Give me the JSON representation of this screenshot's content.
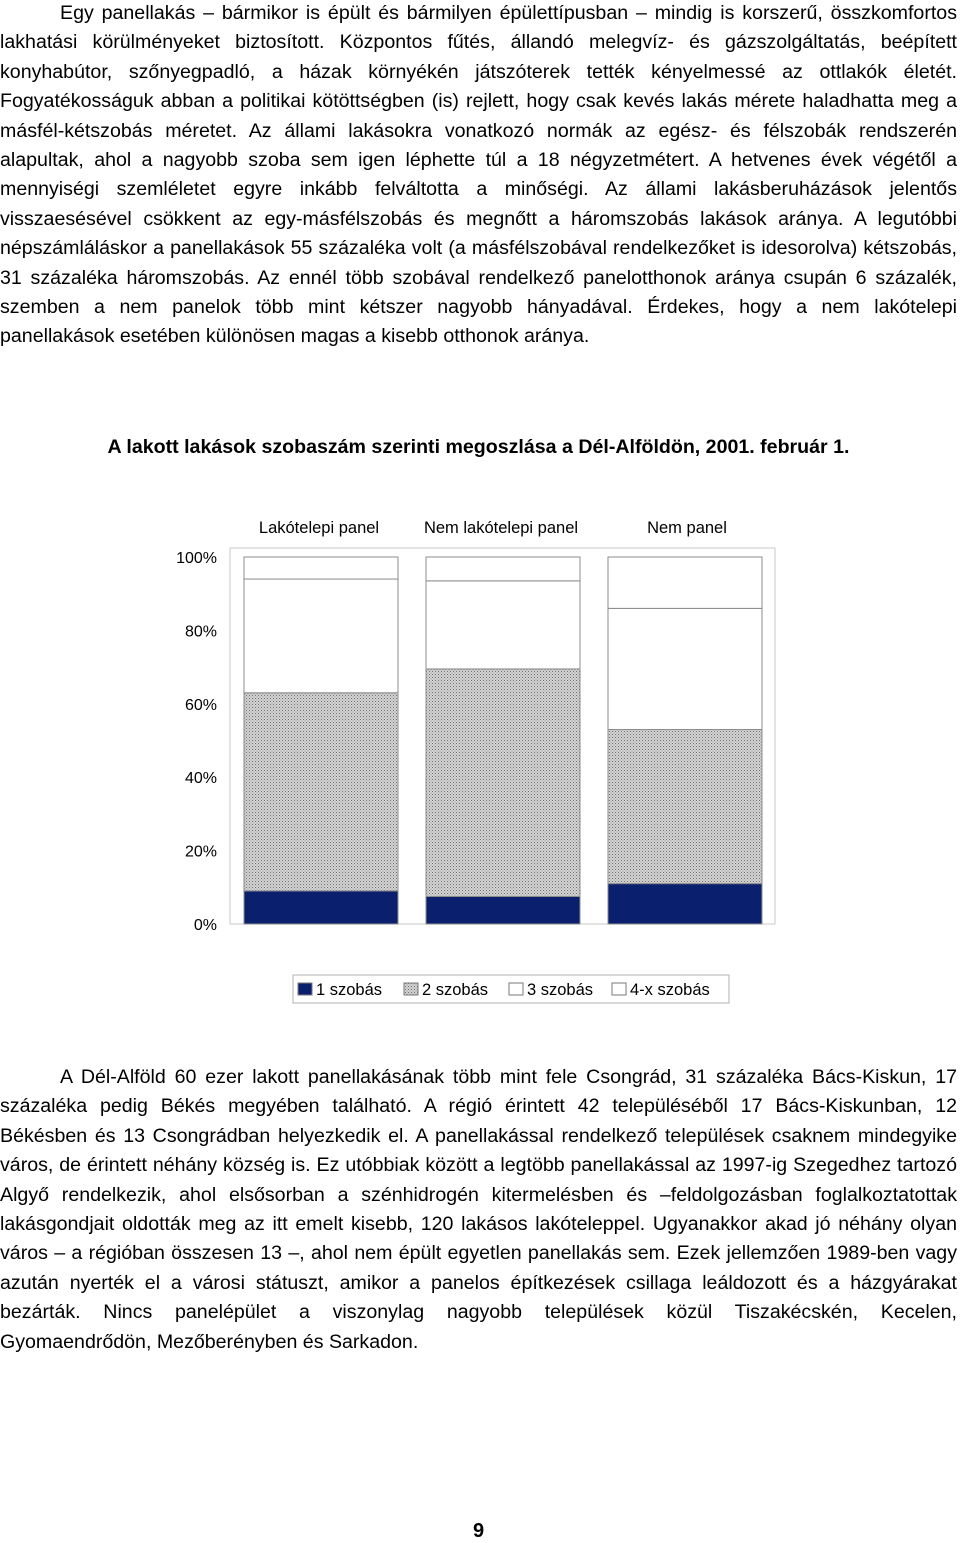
{
  "paragraphs": [
    "Egy panellakás – bármikor is épült és bármilyen épülettípusban – mindig is korszerű, összkomfortos lakhatási körülményeket biztosított. Központos fűtés, állandó melegvíz- és gázszolgáltatás, beépített konyhabútor, szőnyegpadló, a házak környékén játszóterek tették kényelmessé az ottlakók életét. Fogyatékosságuk abban a politikai kötöttségben (is) rejlett, hogy csak kevés lakás mérete haladhatta meg a másfél-kétszobás méretet. Az állami lakásokra vonatkozó normák az egész- és félszobák rendszerén alapultak, ahol a nagyobb szoba sem igen léphette túl a 18 négyzetmétert. A hetvenes évek végétől a mennyiségi szemléletet egyre inkább felváltotta a minőségi. Az állami lakásberuházások jelentős visszaesésével csökkent az egy-másfélszobás és megnőtt a háromszobás lakások aránya. A legutóbbi népszámláláskor a panellakások 55 százaléka volt (a másfélszobával rendelkezőket is idesorolva) kétszobás, 31 százaléka háromszobás. Az ennél több szobával rendelkező panelotthonok aránya csupán 6 százalék, szemben a nem panelok több mint kétszer nagyobb hányadával. Érdekes, hogy a nem lakótelepi panellakások esetében különösen magas a kisebb otthonok aránya.",
    "A Dél-Alföld 60 ezer lakott panellakásának több mint fele Csongrád, 31 százaléka Bács-Kiskun, 17 százaléka pedig Békés megyében található. A régió érintett 42 településéből 17 Bács-Kiskunban, 12 Békésben és 13 Csongrádban helyezkedik el. A panellakással rendelkező települések csaknem mindegyike város, de érintett néhány község is. Ez utóbbiak között a legtöbb panellakással az 1997-ig Szegedhez tartozó Algyő rendelkezik, ahol elsősorban a szénhidrogén kitermelésben és –feldolgozásban foglalkoztatottak lakásgondjait oldották meg az itt emelt kisebb, 120 lakásos lakóteleppel. Ugyanakkor akad jó néhány olyan város – a régióban összesen 13 –, ahol nem épült egyetlen panellakás sem. Ezek jellemzően 1989-ben vagy azután nyerték el a városi státuszt, amikor a panelos építkezések csillaga leáldozott és a házgyárakat bezárták. Nincs panelépület a viszonylag nagyobb települések közül Tiszakécskén, Kecelen, Gyomaendrődön, Mezőberényben és Sarkadon."
  ],
  "chart_heading": "A lakott lakások szobaszám szerinti megoszlása a Dél-Alföldön, 2001. február 1.",
  "chart_data": {
    "type": "bar",
    "stacked": true,
    "categories": [
      "Lakótelepi panel",
      "Nem lakótelepi panel",
      "Nem panel"
    ],
    "series": [
      {
        "name": "1 szobás",
        "values": [
          9,
          7.5,
          11
        ],
        "color": "#0a1f6e"
      },
      {
        "name": "2 szobás",
        "values": [
          54,
          62,
          42
        ],
        "color": "#b4b4b4"
      },
      {
        "name": "3 szobás",
        "values": [
          31,
          24,
          33
        ],
        "color": "#ffffff"
      },
      {
        "name": "4-x szobás",
        "values": [
          6,
          6.5,
          14
        ],
        "color": "#ffffff"
      }
    ],
    "ylim": [
      0,
      100
    ],
    "ytick_labels": [
      "0%",
      "20%",
      "40%",
      "60%",
      "80%",
      "100%"
    ],
    "legend_position": "bottom",
    "grid": false
  },
  "page_number": "9"
}
